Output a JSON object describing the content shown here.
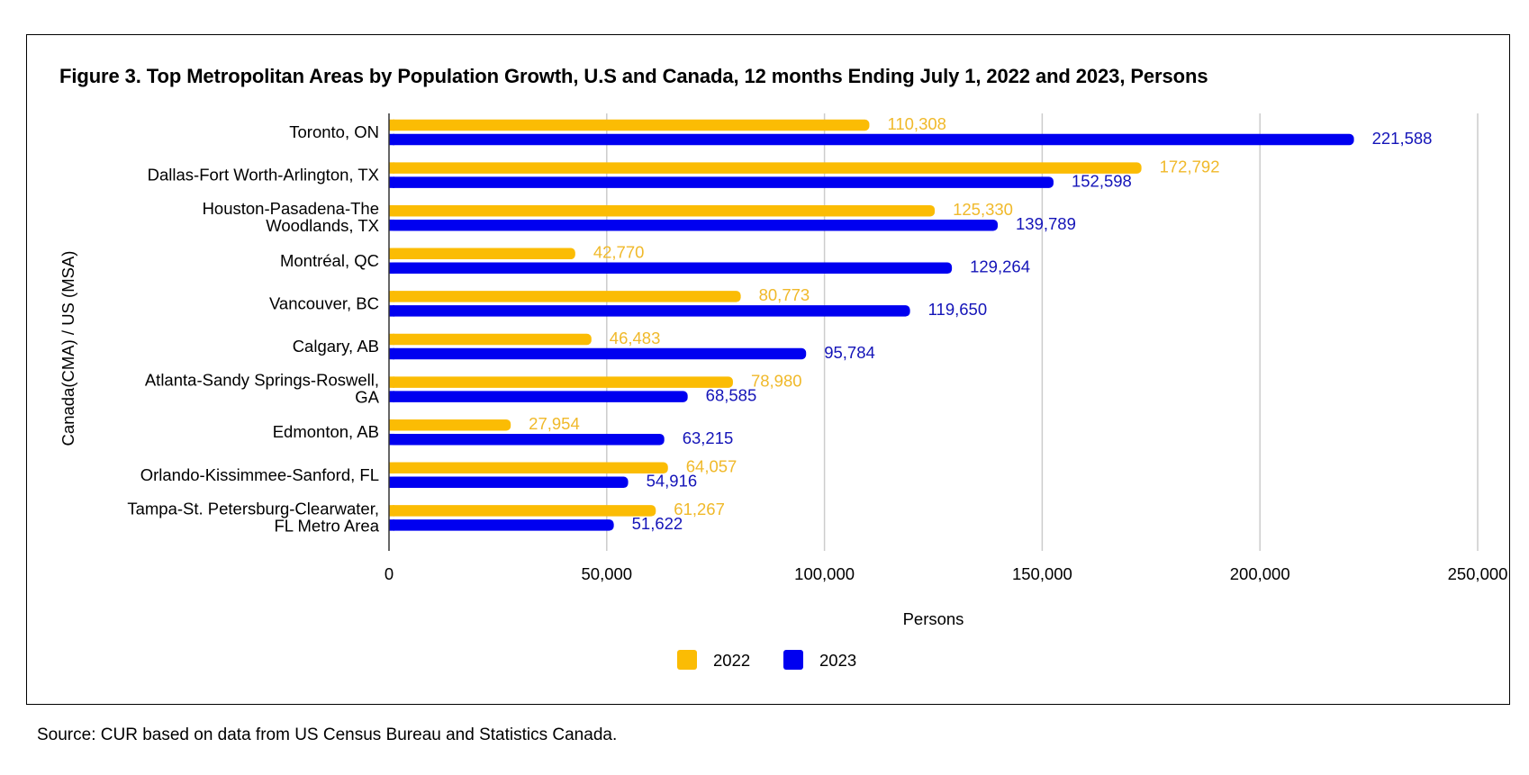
{
  "chart_data": {
    "type": "bar",
    "orientation": "horizontal",
    "title": "Figure 3. Top Metropolitan Areas by Population Growth, U.S and Canada, 12 months Ending July 1, 2022 and 2023, Persons",
    "xlabel": "Persons",
    "ylabel": "Canada(CMA) / US (MSA)",
    "xlim": [
      0,
      250000
    ],
    "xticks": [
      0,
      50000,
      100000,
      150000,
      200000,
      250000
    ],
    "xtick_labels": [
      "0",
      "50,000",
      "100,000",
      "150,000",
      "200,000",
      "250,000"
    ],
    "grid": true,
    "legend_position": "bottom",
    "categories": [
      [
        "Toronto, ON"
      ],
      [
        "Dallas-Fort Worth-Arlington, TX"
      ],
      [
        "Houston-Pasadena-The",
        "Woodlands, TX"
      ],
      [
        "Montréal, QC"
      ],
      [
        "Vancouver, BC"
      ],
      [
        "Calgary, AB"
      ],
      [
        "Atlanta-Sandy Springs-Roswell,",
        "GA"
      ],
      [
        "Edmonton, AB"
      ],
      [
        "Orlando-Kissimmee-Sanford, FL"
      ],
      [
        "Tampa-St. Petersburg-Clearwater,",
        "FL Metro Area"
      ]
    ],
    "series": [
      {
        "name": "2022",
        "color": "#FBBC04",
        "label_color": "#F0B92A",
        "values": [
          110308,
          172792,
          125330,
          42770,
          80773,
          46483,
          78980,
          27954,
          64057,
          61267
        ],
        "labels": [
          "110,308",
          "172,792",
          "125,330",
          "42,770",
          "80,773",
          "46,483",
          "78,980",
          "27,954",
          "64,057",
          "61,267"
        ]
      },
      {
        "name": "2023",
        "color": "#0000F0",
        "label_color": "#1414B8",
        "values": [
          221588,
          152598,
          139789,
          129264,
          119650,
          95784,
          68585,
          63215,
          54916,
          51622
        ],
        "labels": [
          "221,588",
          "152,598",
          "139,789",
          "129,264",
          "119,650",
          "95,784",
          "68,585",
          "63,215",
          "54,916",
          "51,622"
        ]
      }
    ]
  },
  "source": "Source: CUR based on data from US Census Bureau and Statistics Canada."
}
